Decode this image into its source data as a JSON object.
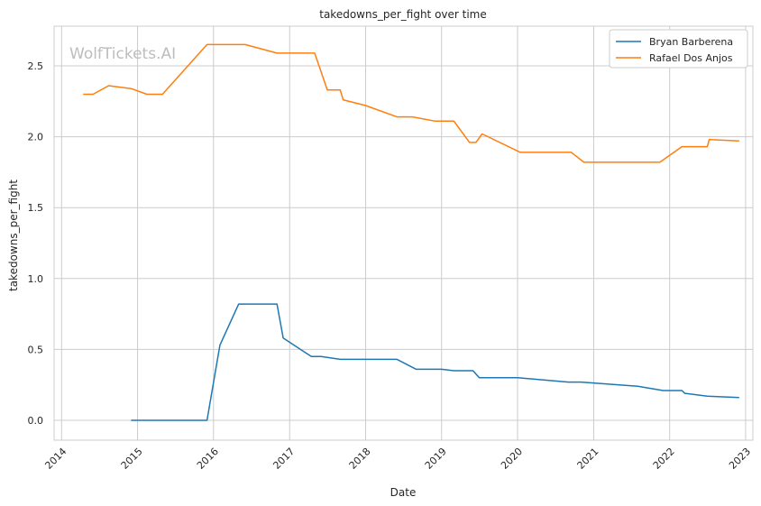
{
  "chart_data": {
    "type": "line",
    "title": "takedowns_per_fight over time",
    "xlabel": "Date",
    "ylabel": "takedowns_per_fight",
    "watermark": "WolfTickets.AI",
    "xlim": [
      "2013-11-26",
      "2023-02-05"
    ],
    "ylim": [
      -0.14,
      2.78
    ],
    "x_ticks": [
      "2014-01-01",
      "2015-01-01",
      "2016-01-01",
      "2017-01-01",
      "2018-01-01",
      "2019-01-01",
      "2020-01-01",
      "2021-01-01",
      "2022-01-01",
      "2023-01-01"
    ],
    "x_tick_labels": [
      "2014",
      "2015",
      "2016",
      "2017",
      "2018",
      "2019",
      "2020",
      "2021",
      "2022",
      "2023"
    ],
    "y_ticks": [
      0.0,
      0.5,
      1.0,
      1.5,
      2.0,
      2.5
    ],
    "y_tick_labels": [
      "0.0",
      "0.5",
      "1.0",
      "1.5",
      "2.0",
      "2.5"
    ],
    "grid": true,
    "legend_position": "top-right",
    "series": [
      {
        "name": "Bryan Barberena",
        "color": "#1f77b4",
        "points": [
          [
            "2014-12-01",
            0.0
          ],
          [
            "2015-12-01",
            0.0
          ],
          [
            "2016-02-01",
            0.53
          ],
          [
            "2016-05-01",
            0.82
          ],
          [
            "2016-11-01",
            0.82
          ],
          [
            "2016-12-01",
            0.58
          ],
          [
            "2017-04-15",
            0.45
          ],
          [
            "2017-06-01",
            0.45
          ],
          [
            "2017-09-01",
            0.43
          ],
          [
            "2018-06-01",
            0.43
          ],
          [
            "2018-09-01",
            0.36
          ],
          [
            "2019-01-01",
            0.36
          ],
          [
            "2019-03-01",
            0.35
          ],
          [
            "2019-06-01",
            0.35
          ],
          [
            "2019-07-01",
            0.3
          ],
          [
            "2020-01-01",
            0.3
          ],
          [
            "2020-09-01",
            0.27
          ],
          [
            "2020-11-01",
            0.27
          ],
          [
            "2021-08-01",
            0.24
          ],
          [
            "2021-12-01",
            0.21
          ],
          [
            "2022-03-01",
            0.21
          ],
          [
            "2022-03-15",
            0.19
          ],
          [
            "2022-07-01",
            0.17
          ],
          [
            "2022-12-01",
            0.16
          ]
        ]
      },
      {
        "name": "Rafael Dos Anjos",
        "color": "#ff7f0e",
        "points": [
          [
            "2014-04-15",
            2.3
          ],
          [
            "2014-06-01",
            2.3
          ],
          [
            "2014-08-15",
            2.36
          ],
          [
            "2014-12-01",
            2.34
          ],
          [
            "2015-02-15",
            2.3
          ],
          [
            "2015-05-01",
            2.3
          ],
          [
            "2015-12-01",
            2.65
          ],
          [
            "2016-06-01",
            2.65
          ],
          [
            "2016-11-01",
            2.59
          ],
          [
            "2017-05-01",
            2.59
          ],
          [
            "2017-07-01",
            2.33
          ],
          [
            "2017-09-01",
            2.33
          ],
          [
            "2017-09-15",
            2.26
          ],
          [
            "2018-01-01",
            2.22
          ],
          [
            "2018-06-01",
            2.14
          ],
          [
            "2018-08-15",
            2.14
          ],
          [
            "2018-12-01",
            2.11
          ],
          [
            "2019-03-01",
            2.11
          ],
          [
            "2019-05-15",
            1.96
          ],
          [
            "2019-06-15",
            1.96
          ],
          [
            "2019-07-15",
            2.02
          ],
          [
            "2020-01-15",
            1.89
          ],
          [
            "2020-09-15",
            1.89
          ],
          [
            "2020-11-15",
            1.82
          ],
          [
            "2021-11-15",
            1.82
          ],
          [
            "2022-03-01",
            1.93
          ],
          [
            "2022-07-01",
            1.93
          ],
          [
            "2022-07-10",
            1.98
          ],
          [
            "2022-12-01",
            1.97
          ]
        ]
      }
    ]
  }
}
